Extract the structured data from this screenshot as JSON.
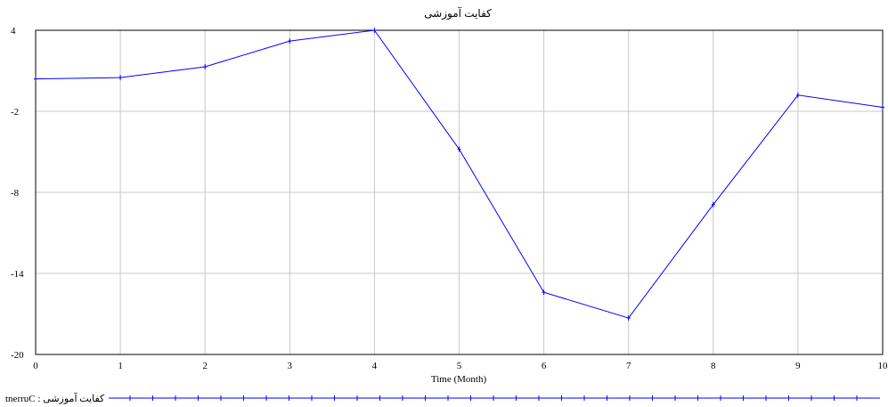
{
  "chart_data": {
    "type": "line",
    "title": "کفایت آموزشی",
    "xlabel": "Time (Month)",
    "ylabel": "",
    "x": [
      0,
      1,
      2,
      3,
      4,
      5,
      6,
      7,
      8,
      9,
      10
    ],
    "xlim": [
      0,
      10
    ],
    "ylim": [
      -20,
      4
    ],
    "xticks": [
      "0",
      "1",
      "2",
      "3",
      "4",
      "5",
      "6",
      "7",
      "8",
      "9",
      "10"
    ],
    "yticks": [
      {
        "value": 4,
        "label": "4"
      },
      {
        "value": -2,
        "label": "-2"
      },
      {
        "value": -8,
        "label": "-8"
      },
      {
        "value": -14,
        "label": "-14"
      },
      {
        "value": -20,
        "label": "-20"
      }
    ],
    "grid": true,
    "legend_position": "bottom-left",
    "series": [
      {
        "name": "کفایت آموزشی : Current",
        "legend_text": "tnerruC : کفایت آموزشی",
        "color": "#0000ff",
        "marker": "plus",
        "values": [
          0.4,
          0.5,
          1.3,
          3.2,
          4.0,
          -4.8,
          -15.4,
          -17.3,
          -8.9,
          -0.8,
          -1.7
        ]
      }
    ]
  }
}
